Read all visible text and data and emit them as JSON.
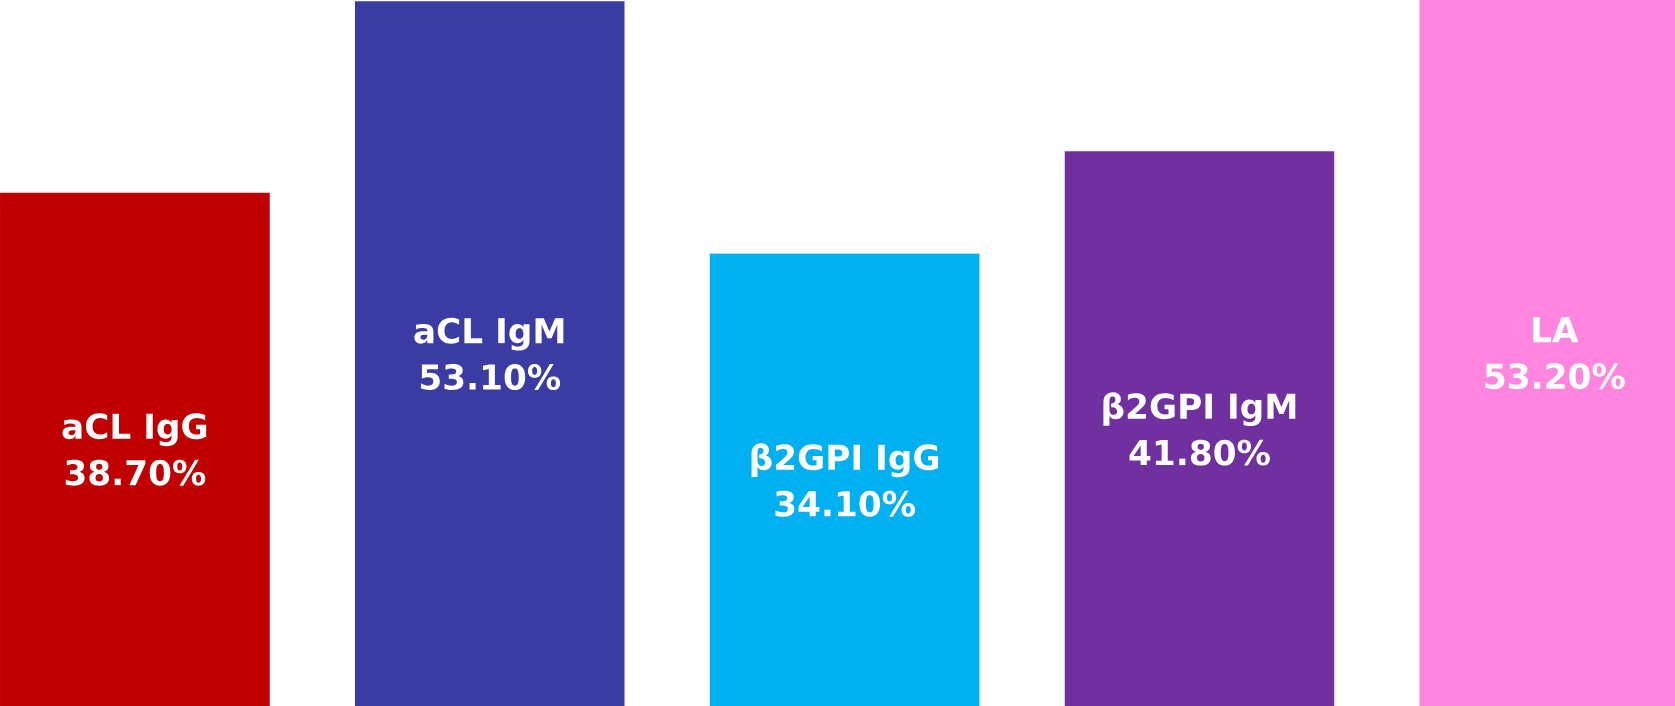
{
  "chart_data": {
    "type": "bar",
    "categories": [
      "aCL IgG",
      "aCL IgM",
      "β2GPI IgG",
      "β2GPI IgM",
      "LA"
    ],
    "values": [
      38.7,
      53.1,
      34.1,
      41.8,
      53.2
    ],
    "value_labels": [
      "38.70%",
      "53.10%",
      "34.10%",
      "41.80%",
      "53.20%"
    ],
    "colors": [
      "#c00000",
      "#3a3ba3",
      "#00b0f0",
      "#7030a0",
      "#ff85df"
    ]
  }
}
